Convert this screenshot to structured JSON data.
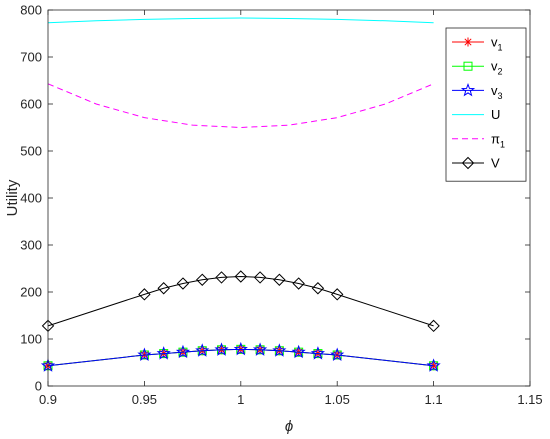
{
  "chart_data": {
    "type": "line",
    "xlabel": "ϕ",
    "ylabel": "Utility",
    "xlim": [
      0.9,
      1.15
    ],
    "ylim": [
      0,
      800
    ],
    "x_ticks": [
      0.9,
      0.95,
      1,
      1.05,
      1.1,
      1.15
    ],
    "x_tick_labels": [
      "0.9",
      "0.95",
      "1",
      "1.05",
      "1.1",
      "1.15"
    ],
    "y_ticks": [
      0,
      100,
      200,
      300,
      400,
      500,
      600,
      700,
      800
    ],
    "y_tick_labels": [
      "0",
      "100",
      "200",
      "300",
      "400",
      "500",
      "600",
      "700",
      "800"
    ],
    "grid": false,
    "legend_position": "top-right",
    "series": [
      {
        "name": "v",
        "subscript": "1",
        "color": "#ff0000",
        "marker": "asterisk",
        "line_style": "solid",
        "x": [
          0.9,
          0.95,
          0.96,
          0.97,
          0.98,
          0.99,
          1.0,
          1.01,
          1.02,
          1.03,
          1.04,
          1.05,
          1.1
        ],
        "y": [
          43,
          66,
          69,
          72,
          75,
          77,
          78,
          77,
          75,
          72,
          69,
          66,
          43
        ]
      },
      {
        "name": "v",
        "subscript": "2",
        "color": "#00ff00",
        "marker": "square",
        "line_style": "solid",
        "x": [
          0.9,
          0.95,
          0.96,
          0.97,
          0.98,
          0.99,
          1.0,
          1.01,
          1.02,
          1.03,
          1.04,
          1.05,
          1.1
        ],
        "y": [
          43,
          66,
          69,
          72,
          75,
          77,
          78,
          77,
          75,
          72,
          69,
          66,
          43
        ]
      },
      {
        "name": "v",
        "subscript": "3",
        "color": "#0000ff",
        "marker": "pentagram",
        "line_style": "solid",
        "x": [
          0.9,
          0.95,
          0.96,
          0.97,
          0.98,
          0.99,
          1.0,
          1.01,
          1.02,
          1.03,
          1.04,
          1.05,
          1.1
        ],
        "y": [
          43,
          66,
          69,
          72,
          75,
          77,
          78,
          77,
          75,
          72,
          69,
          66,
          43
        ]
      },
      {
        "name": "U",
        "subscript": "",
        "color": "#00ffff",
        "marker": "none",
        "line_style": "solid",
        "x": [
          0.9,
          0.925,
          0.95,
          0.975,
          1.0,
          1.025,
          1.05,
          1.075,
          1.1
        ],
        "y": [
          773,
          777,
          780,
          782,
          783,
          782,
          780,
          777,
          773
        ]
      },
      {
        "name": "π",
        "subscript": "1",
        "color": "#ff00ff",
        "marker": "none",
        "line_style": "dashed",
        "x": [
          0.9,
          0.925,
          0.95,
          0.975,
          1.0,
          1.025,
          1.05,
          1.075,
          1.1
        ],
        "y": [
          643,
          600,
          571,
          555,
          550,
          555,
          571,
          600,
          643
        ]
      },
      {
        "name": "V",
        "subscript": "",
        "color": "#000000",
        "marker": "diamond",
        "line_style": "solid",
        "x": [
          0.9,
          0.95,
          0.96,
          0.97,
          0.98,
          0.99,
          1.0,
          1.01,
          1.02,
          1.03,
          1.04,
          1.05,
          1.1
        ],
        "y": [
          128,
          195,
          208,
          218,
          226,
          231,
          233,
          231,
          226,
          218,
          208,
          195,
          128
        ]
      }
    ]
  }
}
